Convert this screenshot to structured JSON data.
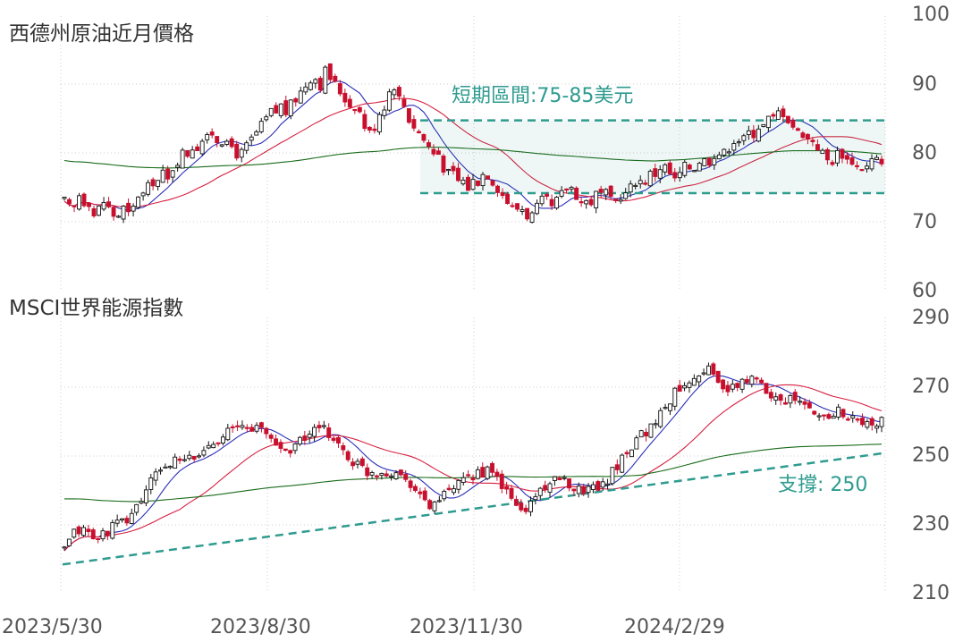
{
  "accent_color": "#2e9b8f",
  "up_color": "#111111",
  "down_color": "#c8102e",
  "ma_colors": {
    "short": "#2b2fb8",
    "mid": "#d62040",
    "long": "#1a6b1a"
  },
  "x_tick_labels": [
    "2023/5/30",
    "2023/8/30",
    "2023/11/30",
    "2024/2/29"
  ],
  "chart_data": [
    {
      "type": "candlestick",
      "title": "西德州原油近月價格",
      "ylim": [
        60,
        100
      ],
      "y_ticks": [
        "100",
        "90",
        "80",
        "70",
        "60"
      ],
      "grid": true,
      "series_closes": [
        73,
        72,
        72,
        74,
        73,
        73,
        71,
        72,
        73,
        72,
        71,
        71,
        72,
        71,
        72,
        74,
        74,
        75,
        76,
        76,
        77,
        76,
        78,
        79,
        80,
        80,
        81,
        81,
        82,
        82,
        83,
        82,
        82,
        81,
        81,
        80,
        80,
        81,
        82,
        83,
        84,
        85,
        86,
        86,
        87,
        86,
        87,
        88,
        89,
        90,
        91,
        91,
        90,
        92,
        91,
        90,
        89,
        88,
        87,
        87,
        86,
        84,
        83,
        84,
        86,
        87,
        89,
        90,
        88,
        87,
        85,
        84,
        83,
        82,
        81,
        80,
        80,
        78,
        77,
        77,
        76,
        76,
        75,
        76,
        76,
        77,
        77,
        76,
        75,
        74,
        73,
        72,
        72,
        72,
        71,
        71,
        72,
        73,
        73,
        72,
        73,
        74,
        75,
        75,
        74,
        73,
        73,
        73,
        74,
        74,
        74,
        73,
        73,
        74,
        74,
        75,
        76,
        76,
        76,
        77,
        77,
        78,
        78,
        77,
        76,
        77,
        78,
        78,
        78,
        79,
        79,
        79,
        80,
        80,
        80,
        81,
        82,
        82,
        82,
        83,
        83,
        84,
        84,
        85,
        85,
        86,
        86,
        85,
        84,
        83,
        83,
        82,
        82,
        81,
        80,
        79,
        79,
        80,
        80,
        79,
        79,
        78,
        78,
        78,
        79,
        79,
        78
      ],
      "annotation": {
        "label": "短期區間:75-85美元",
        "upper": 84.8,
        "lower": 74.2
      }
    },
    {
      "type": "candlestick",
      "title": "MSCI世界能源指數",
      "ylim": [
        210,
        290
      ],
      "y_ticks": [
        "290",
        "270",
        "250",
        "230",
        "210"
      ],
      "grid": true,
      "series_closes": [
        222,
        225,
        227,
        228,
        228,
        227,
        226,
        225,
        227,
        228,
        229,
        230,
        230,
        231,
        233,
        235,
        237,
        240,
        242,
        244,
        246,
        247,
        247,
        248,
        248,
        248,
        249,
        249,
        250,
        251,
        253,
        254,
        255,
        256,
        257,
        257,
        258,
        258,
        258,
        258,
        258,
        257,
        256,
        255,
        253,
        252,
        251,
        252,
        253,
        254,
        255,
        256,
        257,
        257,
        257,
        256,
        255,
        253,
        251,
        249,
        248,
        247,
        246,
        245,
        245,
        245,
        245,
        245,
        245,
        245,
        244,
        243,
        242,
        240,
        238,
        236,
        235,
        236,
        237,
        238,
        239,
        240,
        241,
        242,
        243,
        244,
        245,
        245,
        245,
        244,
        243,
        241,
        239,
        237,
        235,
        234,
        234,
        236,
        238,
        240,
        241,
        242,
        242,
        242,
        242,
        241,
        241,
        240,
        240,
        240,
        241,
        241,
        242,
        243,
        245,
        247,
        249,
        251,
        253,
        255,
        256,
        257,
        258,
        260,
        262,
        264,
        266,
        268,
        270,
        271,
        272,
        273,
        274,
        275,
        275,
        273,
        271,
        270,
        269,
        269,
        270,
        271,
        272,
        272,
        271,
        270,
        269,
        268,
        267,
        267,
        266,
        266,
        266,
        265,
        264,
        263,
        262,
        261,
        261,
        262,
        262,
        263,
        262,
        261,
        260,
        260,
        259,
        259,
        258,
        259,
        260
      ],
      "annotation": {
        "label": "支撐: 250",
        "start": 218,
        "end": 250.5
      }
    }
  ]
}
